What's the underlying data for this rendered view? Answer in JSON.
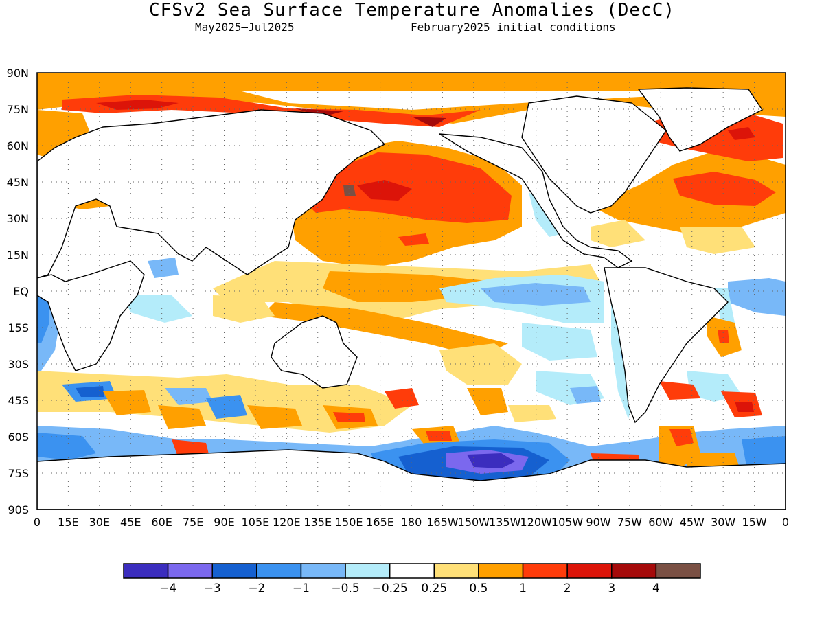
{
  "title": "CFSv2 Sea Surface Temperature Anomalies (DecC)",
  "subtitle_period": "May2025—Jul2025",
  "subtitle_init": "February2025 initial conditions",
  "lat_labels": [
    "90N",
    "75N",
    "60N",
    "45N",
    "30N",
    "15N",
    "EQ",
    "15S",
    "30S",
    "45S",
    "60S",
    "75S",
    "90S"
  ],
  "lon_labels": [
    "0",
    "15E",
    "30E",
    "45E",
    "60E",
    "75E",
    "90E",
    "105E",
    "120E",
    "135E",
    "150E",
    "165E",
    "180",
    "165W",
    "150W",
    "135W",
    "120W",
    "105W",
    "90W",
    "75W",
    "60W",
    "45W",
    "30W",
    "15W",
    "0"
  ],
  "colorbar": {
    "colors": [
      "#3b2dbe",
      "#7b68ee",
      "#1560d0",
      "#3b92f0",
      "#78b8f8",
      "#b4ecfa",
      "#ffffff",
      "#ffe078",
      "#ffa000",
      "#ff3c0a",
      "#dc1409",
      "#a50a0a",
      "#7a5044"
    ],
    "labels": [
      "−4",
      "−3",
      "−2",
      "−1",
      "−0.5",
      "−0.25",
      "0.25",
      "0.5",
      "1",
      "2",
      "3",
      "4"
    ]
  }
}
